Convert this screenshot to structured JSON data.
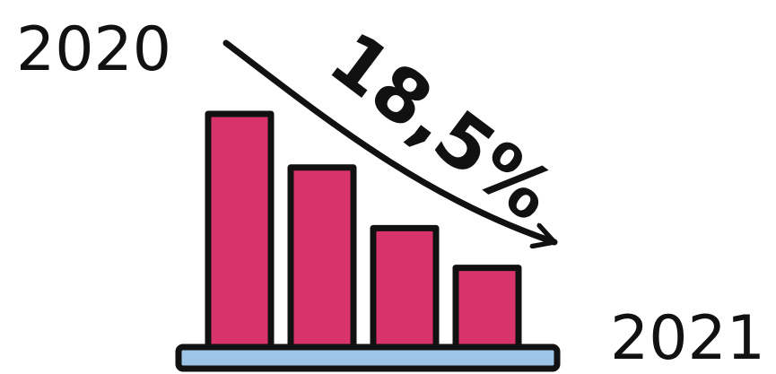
{
  "chart_data": {
    "type": "bar",
    "start_label": "2020",
    "end_label": "2021",
    "change_label": "18,5%",
    "trend": "down",
    "values": [
      100,
      77,
      51,
      34
    ],
    "bar_color": "#d8336a",
    "baseline_color": "#9ec5e8",
    "outline_color": "#111111"
  }
}
